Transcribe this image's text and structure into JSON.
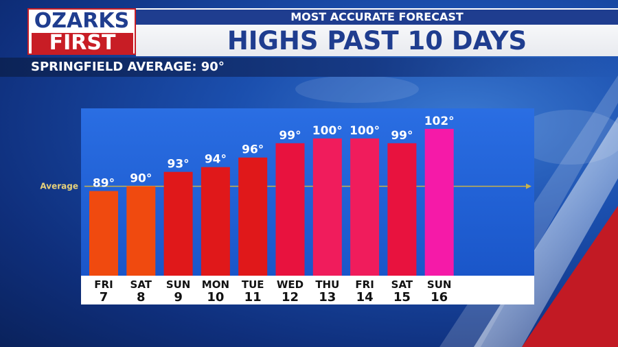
{
  "brand": {
    "logo_top": "OZARKS",
    "logo_bottom": "FIRST"
  },
  "header": {
    "subtitle": "MOST ACCURATE FORECAST",
    "title": "HIGHS PAST 10 DAYS"
  },
  "average_banner": "SPRINGFIELD AVERAGE:  90°",
  "colors": {
    "brand_blue": "#1f3d8f",
    "brand_red": "#c81d25",
    "chart_panel": "#1d5fd6",
    "average_line": "#c9b24a"
  },
  "chart_data": {
    "type": "bar",
    "categories": [
      {
        "day": "FRI",
        "date": "7"
      },
      {
        "day": "SAT",
        "date": "8"
      },
      {
        "day": "SUN",
        "date": "9"
      },
      {
        "day": "MON",
        "date": "10"
      },
      {
        "day": "TUE",
        "date": "11"
      },
      {
        "day": "WED",
        "date": "12"
      },
      {
        "day": "THU",
        "date": "13"
      },
      {
        "day": "FRI",
        "date": "14"
      },
      {
        "day": "SAT",
        "date": "15"
      },
      {
        "day": "SUN",
        "date": "16"
      }
    ],
    "values": [
      89,
      90,
      93,
      94,
      96,
      99,
      100,
      100,
      99,
      102
    ],
    "value_labels": [
      "89°",
      "90°",
      "93°",
      "94°",
      "96°",
      "99°",
      "100°",
      "100°",
      "99°",
      "102°"
    ],
    "bar_colors": [
      "#f04a0f",
      "#f04a0f",
      "#e0181a",
      "#e0181a",
      "#e0181a",
      "#e8123e",
      "#f01c5c",
      "#f01c5c",
      "#e8123e",
      "#f51aa8"
    ],
    "reference_line": {
      "label": "Average",
      "value": 90
    },
    "ylim": [
      70,
      105
    ],
    "grid": false
  }
}
